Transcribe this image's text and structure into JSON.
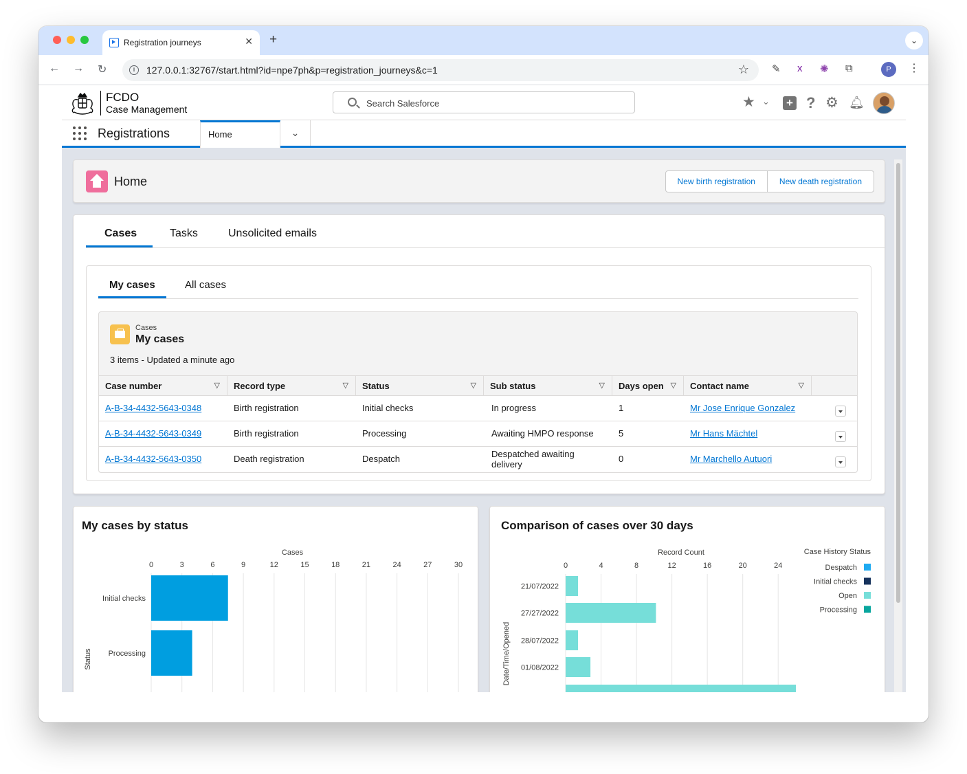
{
  "browser": {
    "tab_title": "Registration journeys",
    "url": "127.0.0.1:32767/start.html?id=npe7ph&p=registration_journeys&c=1",
    "profile_initial": "P"
  },
  "header": {
    "logo_line1": "FCDO",
    "logo_line2": "Case Management",
    "search_placeholder": "Search Salesforce"
  },
  "nav": {
    "app_name": "Registrations",
    "tab_label": "Home"
  },
  "home": {
    "title": "Home",
    "btn_new_birth": "New birth registration",
    "btn_new_death": "New death registration"
  },
  "tabs": [
    "Cases",
    "Tasks",
    "Unsolicited emails"
  ],
  "subtabs": [
    "My cases",
    "All cases"
  ],
  "list_view": {
    "object": "Cases",
    "title": "My cases",
    "meta": "3 items - Updated a minute ago",
    "columns": [
      "Case number",
      "Record type",
      "Status",
      "Sub status",
      "Days open",
      "Contact name"
    ],
    "rows": [
      {
        "case_number": "A-B-34-4432-5643-0348",
        "record_type": "Birth registration",
        "status": "Initial checks",
        "sub_status": "In progress",
        "days_open": "1",
        "contact": "Mr Jose Enrique Gonzalez"
      },
      {
        "case_number": "A-B-34-4432-5643-0349",
        "record_type": "Birth registration",
        "status": "Processing",
        "sub_status": "Awaiting HMPO response",
        "days_open": "5",
        "contact": "Mr Hans Mächtel"
      },
      {
        "case_number": "A-B-34-4432-5643-0350",
        "record_type": "Death registration",
        "status": "Despatch",
        "sub_status": "Despatched awaiting delivery",
        "days_open": "0",
        "contact": "Mr Marchello Autuori"
      }
    ]
  },
  "colors": {
    "brand": "#0176d3",
    "bar_blue": "#009ee0",
    "despatch": "#1eaaf1",
    "initial_checks": "#16325c",
    "open": "#76ded9",
    "processing": "#08a69e"
  },
  "chart_data": [
    {
      "type": "bar",
      "orientation": "horizontal",
      "title": "My cases by status",
      "xlabel": "Cases",
      "ylabel": "Status",
      "ticks": [
        0,
        3,
        6,
        9,
        12,
        15,
        18,
        21,
        24,
        27,
        30
      ],
      "xlim": [
        0,
        30
      ],
      "categories": [
        "Initial checks",
        "Processing"
      ],
      "values": [
        7.5,
        4
      ]
    },
    {
      "type": "bar",
      "orientation": "horizontal",
      "title": "Comparison of cases over 30 days",
      "xlabel": "Record Count",
      "ylabel": "Date/Time/Opened",
      "ticks": [
        0,
        4,
        8,
        12,
        16,
        20,
        24
      ],
      "xlim": [
        0,
        26
      ],
      "legend_title": "Case History Status",
      "legend": [
        "Despatch",
        "Initial checks",
        "Open",
        "Processing"
      ],
      "categories": [
        "21/07/2022",
        "27/27/2022",
        "28/07/2022",
        "01/08/2022"
      ],
      "series": [
        {
          "name": "Open",
          "values": [
            1.4,
            10.2,
            1.4,
            2.8
          ]
        }
      ]
    }
  ]
}
